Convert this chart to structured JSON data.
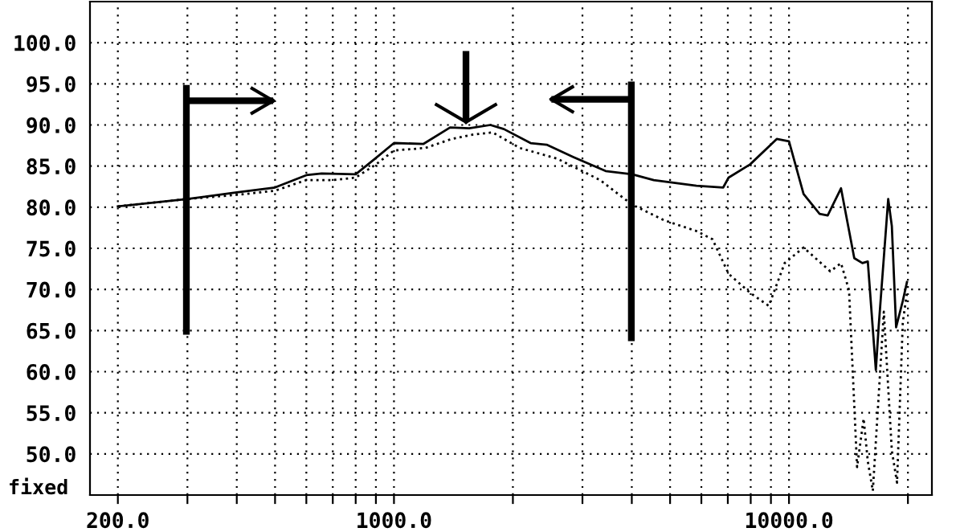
{
  "chart_data": {
    "type": "line",
    "xlim": [
      170,
      23000
    ],
    "ylim": [
      45,
      105
    ],
    "log": "x",
    "grid": true,
    "marker": "none",
    "xticks": [
      {
        "value": 200,
        "label": "200.0"
      },
      {
        "value": 300,
        "label": null
      },
      {
        "value": 400,
        "label": null
      },
      {
        "value": 500,
        "label": null
      },
      {
        "value": 600,
        "label": null
      },
      {
        "value": 700,
        "label": null
      },
      {
        "value": 800,
        "label": null
      },
      {
        "value": 900,
        "label": null
      },
      {
        "value": 1000,
        "label": "1000.0"
      },
      {
        "value": 2000,
        "label": null
      },
      {
        "value": 3000,
        "label": null
      },
      {
        "value": 4000,
        "label": null
      },
      {
        "value": 5000,
        "label": null
      },
      {
        "value": 6000,
        "label": null
      },
      {
        "value": 7000,
        "label": null
      },
      {
        "value": 8000,
        "label": null
      },
      {
        "value": 9000,
        "label": null
      },
      {
        "value": 10000,
        "label": "10000.0"
      },
      {
        "value": 20000,
        "label": null
      }
    ],
    "yticks": [
      {
        "value": 50,
        "label": "50.0"
      },
      {
        "value": 55,
        "label": "55.0"
      },
      {
        "value": 60,
        "label": "60.0"
      },
      {
        "value": 65,
        "label": "65.0"
      },
      {
        "value": 70,
        "label": "70.0"
      },
      {
        "value": 75,
        "label": "75.0"
      },
      {
        "value": 80,
        "label": "80.0"
      },
      {
        "value": 85,
        "label": "85.0"
      },
      {
        "value": 90,
        "label": "90.0"
      },
      {
        "value": 95,
        "label": "95.0"
      },
      {
        "value": 100,
        "label": "100.0"
      }
    ],
    "annotations": [
      "fixed"
    ],
    "series": [
      {
        "color": "#000000",
        "line_style": "solid",
        "x": [
          200,
          300,
          400,
          500,
          600,
          656,
          800,
          896,
          1000,
          1188,
          1387,
          1550,
          1754,
          1898,
          2217,
          2435,
          2846,
          3433,
          4009,
          4545,
          5829,
          6815,
          7032,
          7968,
          9311,
          10000,
          10885,
          11950,
          12530,
          13540,
          14630,
          15340,
          15830,
          16590,
          16860,
          17830,
          18210,
          18670,
          19410,
          19890
        ],
        "values": [
          80.1,
          81.0,
          81.8,
          82.4,
          83.9,
          84.1,
          84.0,
          85.9,
          87.8,
          87.7,
          89.7,
          89.6,
          90.0,
          89.5,
          87.8,
          87.6,
          86.1,
          84.4,
          84.0,
          83.3,
          82.6,
          82.4,
          83.6,
          85.2,
          88.3,
          88.0,
          81.6,
          79.2,
          79.0,
          82.3,
          73.8,
          73.2,
          73.4,
          60.2,
          65.4,
          81.0,
          77.7,
          65.4,
          68.6,
          70.9
        ]
      },
      {
        "color": "#000000",
        "line_style": "dotted",
        "x": [
          200,
          300,
          400,
          500,
          600,
          700,
          800,
          900,
          1000,
          1200,
          1400,
          1570,
          1776,
          2083,
          2592,
          3326,
          4009,
          4836,
          5829,
          6402,
          7032,
          7968,
          8887,
          9750,
          10885,
          12720,
          13540,
          14190,
          14870,
          15450,
          15830,
          16300,
          17380,
          18210,
          18770,
          19410,
          19890
        ],
        "values": [
          80.1,
          81.0,
          81.5,
          82.0,
          83.3,
          83.3,
          83.6,
          85.2,
          86.9,
          87.2,
          88.3,
          88.8,
          89.1,
          87.2,
          85.9,
          83.3,
          80.3,
          78.4,
          77.1,
          76.1,
          71.9,
          69.6,
          68.0,
          73.2,
          75.1,
          72.2,
          73.2,
          69.9,
          48.4,
          54.3,
          49.1,
          45.5,
          67.3,
          50.4,
          46.5,
          66.0,
          69.6
        ]
      }
    ]
  }
}
